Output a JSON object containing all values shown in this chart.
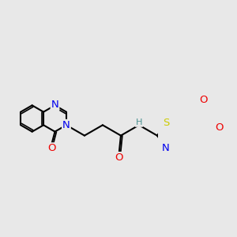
{
  "background_color": "#e8e8e8",
  "bond_color": "#000000",
  "bond_width": 1.5,
  "atom_colors": {
    "N": "#0000ee",
    "O": "#ee0000",
    "S": "#cccc00",
    "NH": "#4a9090",
    "C": "#000000"
  },
  "font_size": 9.5,
  "figsize": [
    3.0,
    3.0
  ],
  "dpi": 100
}
